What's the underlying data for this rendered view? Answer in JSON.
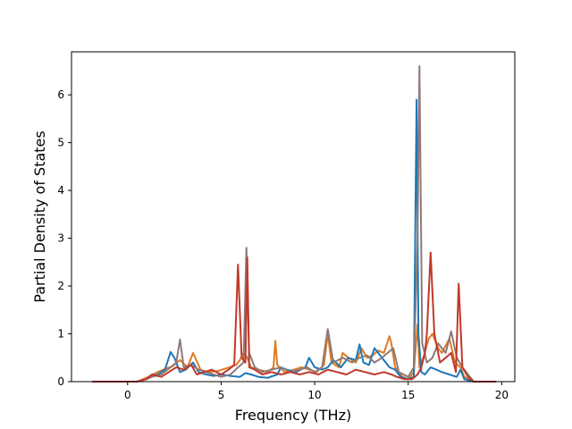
{
  "chart_data": {
    "type": "line",
    "title": "",
    "xlabel": "Frequency (THz)",
    "ylabel": "Partial Density of States",
    "xlim": [
      -3.0,
      20.7
    ],
    "ylim": [
      0,
      6.9
    ],
    "xticks": [
      0,
      5,
      10,
      15,
      20
    ],
    "xtick_labels": [
      "0",
      "5",
      "10",
      "15",
      "20"
    ],
    "yticks": [
      0,
      1,
      2,
      3,
      4,
      5,
      6
    ],
    "ytick_labels": [
      "0",
      "1",
      "2",
      "3",
      "4",
      "5",
      "6"
    ],
    "grid": false,
    "legend": false,
    "series": [
      {
        "color": "#e07b20",
        "x": [
          -1.9,
          0.5,
          1.0,
          1.2,
          1.6,
          2.1,
          2.4,
          2.8,
          3.2,
          3.5,
          3.9,
          4.3,
          4.8,
          5.3,
          5.8,
          6.0,
          6.2,
          6.4,
          6.6,
          7.0,
          7.5,
          7.8,
          7.9,
          8.0,
          8.4,
          8.9,
          9.3,
          9.7,
          10.1,
          10.5,
          10.7,
          10.9,
          11.3,
          11.5,
          11.8,
          12.2,
          12.5,
          12.8,
          13.1,
          13.4,
          13.7,
          14.0,
          14.1,
          14.3,
          14.7,
          15.0,
          15.3,
          15.5,
          15.6,
          15.8,
          16.1,
          16.3,
          16.6,
          16.8,
          17.0,
          17.2,
          17.5,
          17.8,
          18.0,
          18.5,
          19.7
        ],
        "y": [
          0,
          0,
          0.08,
          0.12,
          0.2,
          0.28,
          0.32,
          0.45,
          0.3,
          0.6,
          0.25,
          0.2,
          0.22,
          0.28,
          0.35,
          0.45,
          0.6,
          0.5,
          0.3,
          0.25,
          0.2,
          0.3,
          0.85,
          0.35,
          0.2,
          0.25,
          0.3,
          0.25,
          0.2,
          0.35,
          1.0,
          0.4,
          0.3,
          0.6,
          0.5,
          0.4,
          0.7,
          0.5,
          0.55,
          0.65,
          0.6,
          0.95,
          0.8,
          0.3,
          0.1,
          0.05,
          0.2,
          1.2,
          0.3,
          0.5,
          0.9,
          1.0,
          0.7,
          0.6,
          0.75,
          0.9,
          0.4,
          0.3,
          0.1,
          0,
          0
        ]
      },
      {
        "color": "#1f77b4",
        "x": [
          -1.9,
          0.5,
          1.0,
          1.2,
          1.6,
          2.0,
          2.3,
          2.5,
          2.8,
          3.1,
          3.5,
          3.8,
          4.2,
          4.6,
          5.0,
          5.5,
          6.0,
          6.3,
          6.6,
          7.0,
          7.5,
          8.0,
          8.2,
          8.5,
          9.0,
          9.5,
          9.7,
          10.0,
          10.4,
          10.7,
          11.0,
          11.4,
          11.8,
          12.2,
          12.4,
          12.6,
          12.9,
          13.2,
          13.6,
          14.0,
          14.3,
          14.6,
          15.0,
          15.3,
          15.45,
          15.55,
          15.7,
          15.9,
          16.2,
          16.5,
          16.8,
          17.2,
          17.6,
          17.8,
          18.0,
          18.5,
          19.7
        ],
        "y": [
          0,
          0,
          0.05,
          0.1,
          0.15,
          0.25,
          0.62,
          0.5,
          0.2,
          0.25,
          0.4,
          0.2,
          0.15,
          0.12,
          0.15,
          0.12,
          0.1,
          0.18,
          0.15,
          0.1,
          0.08,
          0.15,
          0.3,
          0.25,
          0.2,
          0.3,
          0.5,
          0.3,
          0.25,
          0.3,
          0.45,
          0.3,
          0.5,
          0.45,
          0.78,
          0.4,
          0.35,
          0.7,
          0.5,
          0.3,
          0.25,
          0.1,
          0.05,
          0.1,
          5.9,
          1.0,
          0.2,
          0.15,
          0.3,
          0.25,
          0.2,
          0.15,
          0.1,
          0.25,
          0.05,
          0,
          0
        ]
      },
      {
        "color": "#8c7a7a",
        "x": [
          -1.9,
          0.5,
          1.0,
          1.3,
          1.8,
          2.3,
          2.6,
          2.8,
          3.0,
          3.4,
          3.8,
          4.2,
          4.6,
          5.0,
          5.5,
          5.9,
          6.2,
          6.35,
          6.5,
          6.8,
          7.2,
          7.7,
          8.2,
          8.7,
          9.2,
          9.6,
          10.0,
          10.4,
          10.7,
          11.0,
          11.5,
          12.0,
          12.4,
          12.8,
          13.2,
          13.6,
          13.9,
          14.2,
          14.5,
          15.0,
          15.3,
          15.5,
          15.6,
          15.75,
          16.0,
          16.3,
          16.6,
          17.0,
          17.3,
          17.6,
          17.9,
          18.5,
          19.7
        ],
        "y": [
          0,
          0,
          0.05,
          0.1,
          0.15,
          0.3,
          0.4,
          0.88,
          0.3,
          0.35,
          0.25,
          0.2,
          0.15,
          0.1,
          0.15,
          0.3,
          0.4,
          2.8,
          0.6,
          0.3,
          0.2,
          0.25,
          0.3,
          0.2,
          0.25,
          0.3,
          0.2,
          0.3,
          1.1,
          0.4,
          0.5,
          0.4,
          0.5,
          0.55,
          0.4,
          0.5,
          0.6,
          0.7,
          0.2,
          0.1,
          0.3,
          3.0,
          6.6,
          0.8,
          0.4,
          0.5,
          0.8,
          0.6,
          1.05,
          0.5,
          0.3,
          0,
          0
        ]
      },
      {
        "color": "#c0392b",
        "x": [
          -1.9,
          0.5,
          1.0,
          1.3,
          1.8,
          2.2,
          2.6,
          3.0,
          3.4,
          3.7,
          4.1,
          4.5,
          5.0,
          5.4,
          5.7,
          5.9,
          6.1,
          6.3,
          6.4,
          6.5,
          6.8,
          7.2,
          7.7,
          8.2,
          8.7,
          9.2,
          9.7,
          10.2,
          10.7,
          11.2,
          11.7,
          12.2,
          12.7,
          13.2,
          13.7,
          14.1,
          14.4,
          14.8,
          15.2,
          15.5,
          15.7,
          15.9,
          16.0,
          16.2,
          16.4,
          16.7,
          17.0,
          17.3,
          17.55,
          17.7,
          17.9,
          18.2,
          18.5,
          19.7
        ],
        "y": [
          0,
          0,
          0.05,
          0.15,
          0.1,
          0.2,
          0.3,
          0.25,
          0.35,
          0.15,
          0.2,
          0.25,
          0.15,
          0.25,
          0.35,
          2.45,
          0.5,
          0.4,
          2.6,
          0.3,
          0.25,
          0.15,
          0.2,
          0.15,
          0.2,
          0.15,
          0.2,
          0.15,
          0.25,
          0.2,
          0.15,
          0.25,
          0.2,
          0.15,
          0.2,
          0.15,
          0.1,
          0.05,
          0.05,
          0.15,
          0.3,
          0.6,
          1.0,
          2.7,
          1.0,
          0.4,
          0.5,
          0.6,
          0.2,
          2.05,
          0.3,
          0.1,
          0,
          0
        ]
      }
    ]
  }
}
